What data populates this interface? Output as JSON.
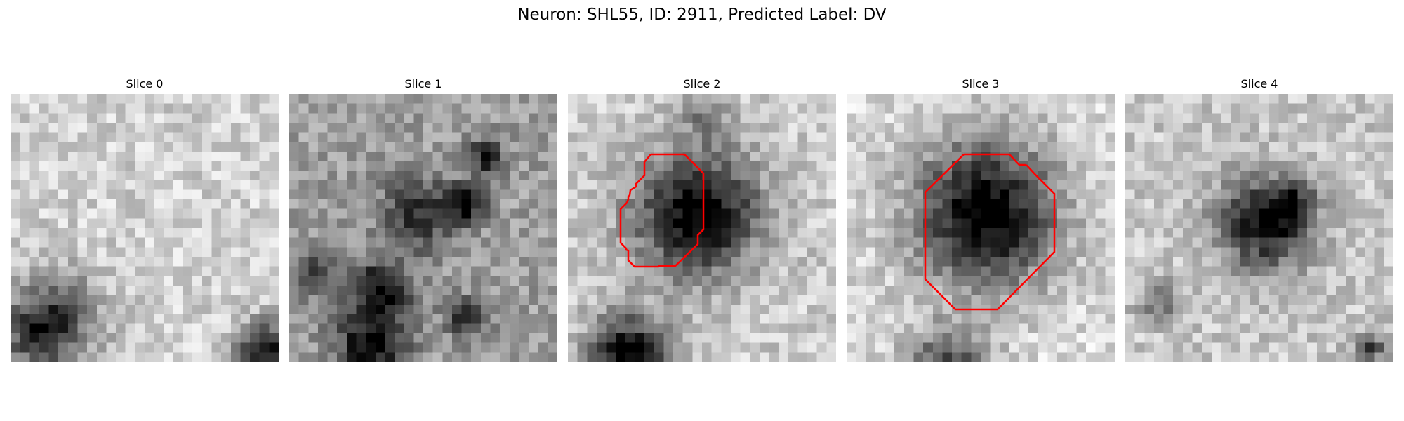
{
  "figure": {
    "title": "Neuron: SHL55, ID: 2911, Predicted Label: DV",
    "contour_color": "#ff0000",
    "colormap": "grayscale-inverted"
  },
  "slices": [
    {
      "label": "Slice 0",
      "has_contour": false
    },
    {
      "label": "Slice 1",
      "has_contour": false
    },
    {
      "label": "Slice 2",
      "has_contour": true
    },
    {
      "label": "Slice 3",
      "has_contour": true
    },
    {
      "label": "Slice 4",
      "has_contour": false
    }
  ]
}
